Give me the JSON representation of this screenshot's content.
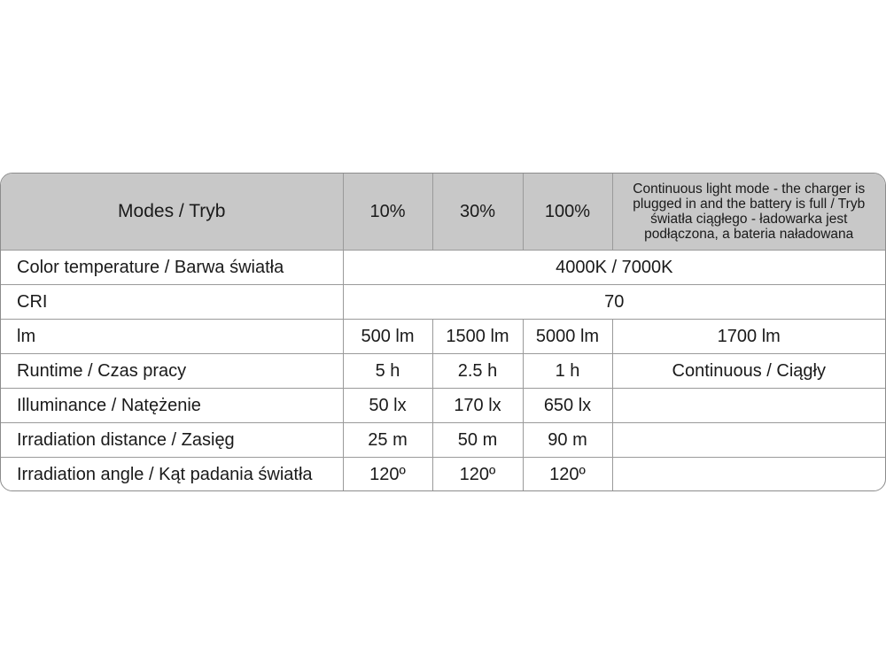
{
  "header": {
    "modes": "Modes / Tryb",
    "levels": [
      "10%",
      "30%",
      "100%"
    ],
    "continuous": "Continuous light mode - the charger is plugged in and the battery is full / Tryb światła ciągłego - ładowarka jest podłączona, a bateria naładowana"
  },
  "rows": {
    "color_temp": {
      "label": "Color temperature / Barwa światła",
      "value": "4000K / 7000K"
    },
    "cri": {
      "label": "CRI",
      "value": "70"
    },
    "lm": {
      "label": "lm",
      "values": [
        "500 lm",
        "1500 lm",
        "5000 lm",
        "1700 lm"
      ]
    },
    "runtime": {
      "label": "Runtime / Czas pracy",
      "values": [
        "5 h",
        "2.5 h",
        "1 h",
        "Continuous / Ciągły"
      ]
    },
    "illuminance": {
      "label": "Illuminance / Natężenie",
      "values": [
        "50 lx",
        "170 lx",
        "650 lx"
      ]
    },
    "distance": {
      "label": "Irradiation distance / Zasięg",
      "values": [
        "25 m",
        "50 m",
        "90 m"
      ]
    },
    "angle": {
      "label": "Irradiation angle / Kąt padania światła",
      "values": [
        "120º",
        "120º",
        "120º"
      ]
    }
  }
}
